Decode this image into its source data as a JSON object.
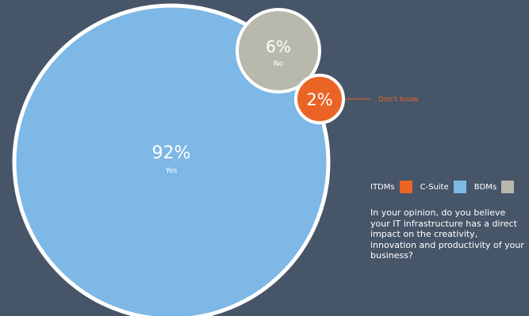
{
  "chart_data": {
    "type": "bubble",
    "title": "",
    "series": [
      {
        "name": "Yes",
        "value": 92,
        "label": "92%",
        "color": "#7db8e6"
      },
      {
        "name": "No",
        "value": 6,
        "label": "6%",
        "color": "#b8b9ac"
      },
      {
        "name": "Don't know",
        "value": 2,
        "label": "2%",
        "color": "#ea6425"
      }
    ]
  },
  "legend": {
    "items": [
      {
        "label": "ITDMs",
        "color": "#ea6425"
      },
      {
        "label": "C-Suite",
        "color": "#7db8e6"
      },
      {
        "label": "BDMs",
        "color": "#b8b9ac"
      }
    ]
  },
  "question": "In your opinion, do you believe your IT infrastructure has a direct impact on the creativity, innovation and productivity of your business?"
}
